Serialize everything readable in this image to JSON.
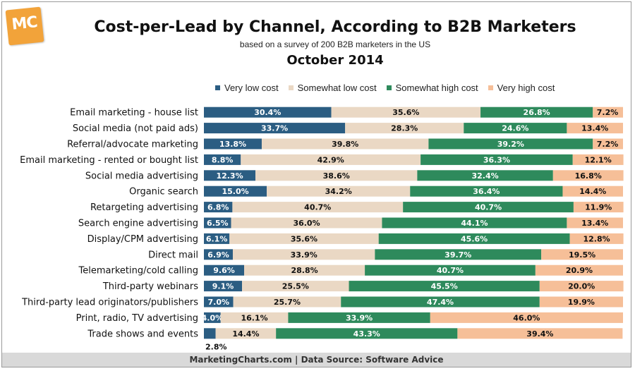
{
  "logo": {
    "text": "MC"
  },
  "chart_data": {
    "type": "bar",
    "orientation": "horizontal",
    "stacked": true,
    "title": "Cost-per-Lead by Channel, According to B2B Marketers",
    "subtitle": "based on a survey of 200 B2B marketers in the US",
    "date": "October 2014",
    "xlim": [
      0,
      100
    ],
    "legend_position": "top",
    "categories": [
      "Email marketing - house list",
      "Social media (not paid ads)",
      "Referral/advocate marketing",
      "Email marketing - rented or bought list",
      "Social media advertising",
      "Organic search",
      "Retargeting advertising",
      "Search engine advertising",
      "Display/CPM advertising",
      "Direct mail",
      "Telemarketing/cold calling",
      "Third-party webinars",
      "Third-party lead originators/publishers",
      "Print, radio, TV advertising",
      "Trade shows and events"
    ],
    "series": [
      {
        "name": "Very low cost",
        "color": "#2b5d82",
        "label_color": "#ffffff",
        "values": [
          30.4,
          33.7,
          13.8,
          8.8,
          12.3,
          15.0,
          6.8,
          6.5,
          6.1,
          6.9,
          9.6,
          9.1,
          7.0,
          4.0,
          2.8
        ],
        "labels": [
          "30.4%",
          "33.7%",
          "13.8%",
          "8.8%",
          "12.3%",
          "15.0%",
          "6.8%",
          "6.5%",
          "6.1%",
          "6.9%",
          "9.6%",
          "9.1%",
          "7.0%",
          "4.0%",
          "2.8%"
        ]
      },
      {
        "name": "Somewhat low cost",
        "color": "#ead8c4",
        "label_color": "#111111",
        "values": [
          35.6,
          28.3,
          39.8,
          42.9,
          38.6,
          34.2,
          40.7,
          36.0,
          35.6,
          33.9,
          28.8,
          25.5,
          25.7,
          16.1,
          14.4
        ],
        "labels": [
          "35.6%",
          "28.3%",
          "39.8%",
          "42.9%",
          "38.6%",
          "34.2%",
          "40.7%",
          "36.0%",
          "35.6%",
          "33.9%",
          "28.8%",
          "25.5%",
          "25.7%",
          "16.1%",
          "14.4%"
        ]
      },
      {
        "name": "Somewhat high cost",
        "color": "#2e8a5c",
        "label_color": "#ffffff",
        "values": [
          26.8,
          24.6,
          39.2,
          36.3,
          32.4,
          36.4,
          40.7,
          44.1,
          45.6,
          39.7,
          40.7,
          45.5,
          47.4,
          33.9,
          43.3
        ],
        "labels": [
          "26.8%",
          "24.6%",
          "39.2%",
          "36.3%",
          "32.4%",
          "36.4%",
          "40.7%",
          "44.1%",
          "45.6%",
          "39.7%",
          "40.7%",
          "45.5%",
          "47.4%",
          "33.9%",
          "43.3%"
        ]
      },
      {
        "name": "Very high cost",
        "color": "#f6bf98",
        "label_color": "#111111",
        "values": [
          7.2,
          13.4,
          7.2,
          12.1,
          16.8,
          14.4,
          11.9,
          13.4,
          12.8,
          19.5,
          20.9,
          20.0,
          19.9,
          46.0,
          39.4
        ],
        "labels": [
          "7.2%",
          "13.4%",
          "7.2%",
          "12.1%",
          "16.8%",
          "14.4%",
          "11.9%",
          "13.4%",
          "12.8%",
          "19.5%",
          "20.9%",
          "20.0%",
          "19.9%",
          "46.0%",
          "39.4%"
        ]
      }
    ]
  },
  "footer": {
    "text": "MarketingCharts.com | Data Source: Software Advice"
  }
}
